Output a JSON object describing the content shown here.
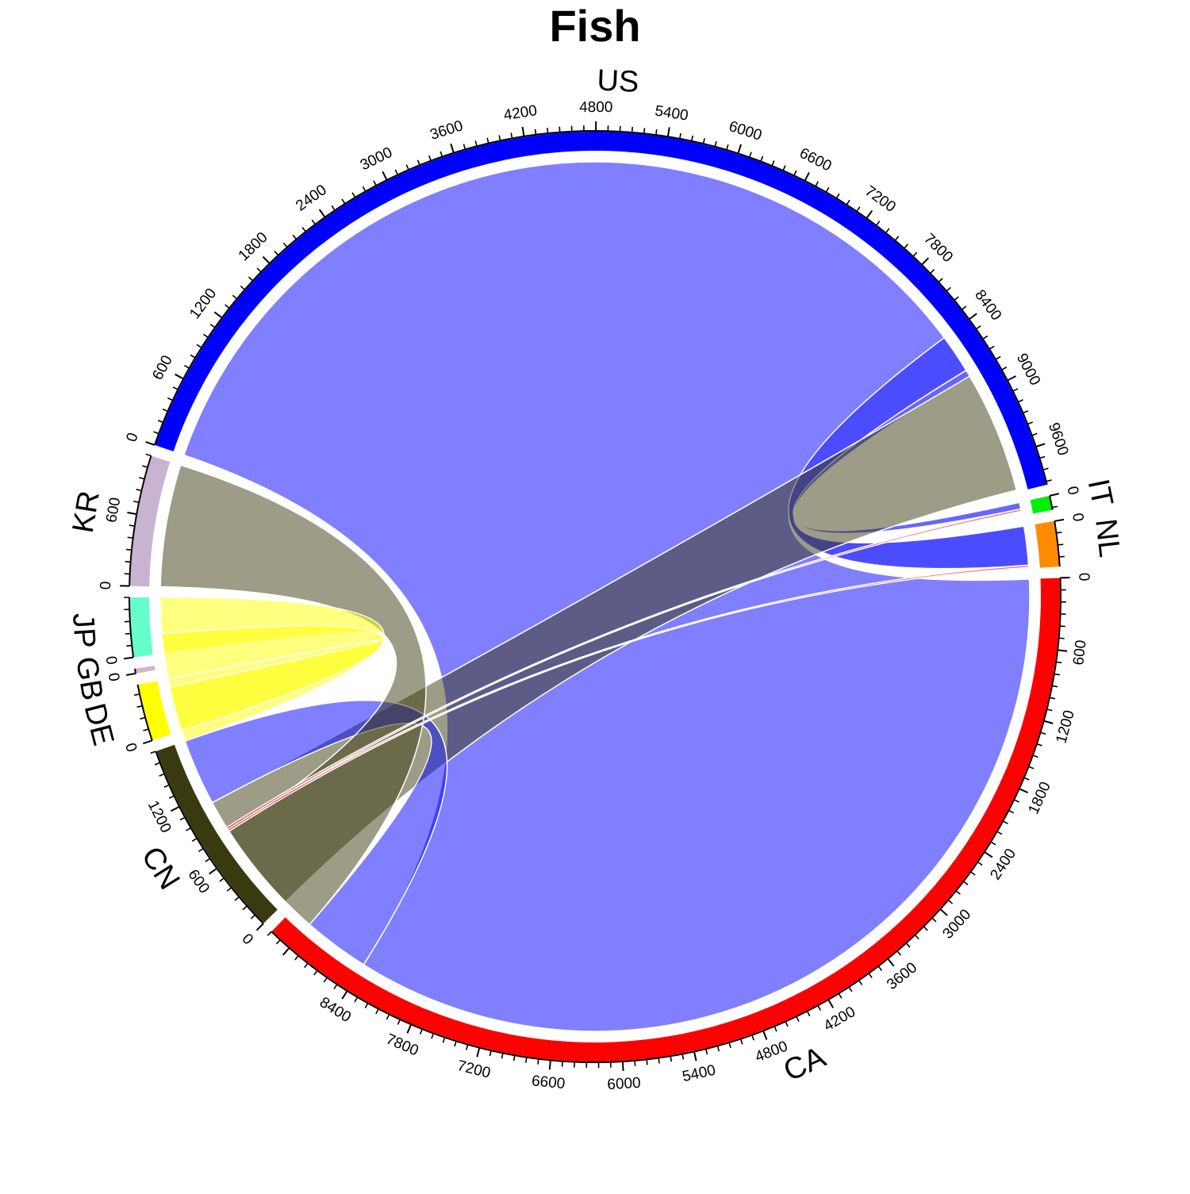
{
  "chart_data": {
    "type": "chord",
    "title": "Fish",
    "sectors": [
      {
        "name": "US",
        "label": "US",
        "total": 9928,
        "color": "#0000FF"
      },
      {
        "name": "IT",
        "label": "IT",
        "total": 120,
        "color": "#00EE00"
      },
      {
        "name": "NL",
        "label": "NL",
        "total": 380,
        "color": "#FF8C00"
      },
      {
        "name": "CA",
        "label": "CA",
        "total": 9200,
        "color": "#FF0000"
      },
      {
        "name": "CN",
        "label": "CN",
        "total": 1700,
        "color": "#3A3A10"
      },
      {
        "name": "DE",
        "label": "DE",
        "total": 480,
        "color": "#FFFF00"
      },
      {
        "name": "GB",
        "label": "GB",
        "total": 40,
        "color": "#D2B4D2"
      },
      {
        "name": "JP",
        "label": "JP",
        "total": 500,
        "color": "#66FFCC"
      },
      {
        "name": "KR",
        "label": "KR",
        "total": 1100,
        "color": "#C8B4D2"
      }
    ],
    "tick_values": {
      "US": [
        0,
        600,
        1200,
        1800,
        2400,
        3000,
        3600,
        4200,
        4800,
        5400,
        6000,
        6600,
        7200,
        7800,
        8400,
        9000,
        9600
      ],
      "IT": [
        0
      ],
      "NL": [
        0
      ],
      "CA": [
        0,
        600,
        1200,
        1800,
        2400,
        3000,
        3600,
        4200,
        4800,
        5400,
        6000,
        6600,
        7200,
        7800,
        8400
      ],
      "CN": [
        0,
        600,
        1200
      ],
      "DE": [
        0
      ],
      "GB": [
        0
      ],
      "JP": [
        0
      ],
      "KR": [
        0,
        600
      ]
    },
    "links": [
      {
        "from": "US",
        "to": "CA",
        "value": 8400,
        "color": "#0000FF",
        "opacity": 0.5
      },
      {
        "from": "US",
        "to": "NL",
        "value": 350,
        "color": "#0000FF",
        "opacity": 0.7
      },
      {
        "from": "US",
        "to": "IT",
        "value": 60,
        "color": "#0000FF",
        "opacity": 0.6
      },
      {
        "from": "CN",
        "to": "US",
        "value": 1100,
        "color": "#3A3A10",
        "opacity": 0.5
      },
      {
        "from": "CN",
        "to": "CA",
        "value": 600,
        "color": "#0000FF",
        "opacity": 0.5
      },
      {
        "from": "KR",
        "to": "CA",
        "value": 1100,
        "color": "#3A3A10",
        "opacity": 0.5
      },
      {
        "from": "JP",
        "to": "CN",
        "value": 500,
        "color": "#FFFF00",
        "opacity": 0.5
      },
      {
        "from": "DE",
        "to": "CN",
        "value": 480,
        "color": "#FFFF00",
        "opacity": 0.5
      },
      {
        "from": "CA",
        "to": "NL",
        "value": 20,
        "color": "#FF0000",
        "opacity": 0.6
      },
      {
        "from": "CA",
        "to": "IT",
        "value": 20,
        "color": "#FF0000",
        "opacity": 0.6
      }
    ]
  }
}
